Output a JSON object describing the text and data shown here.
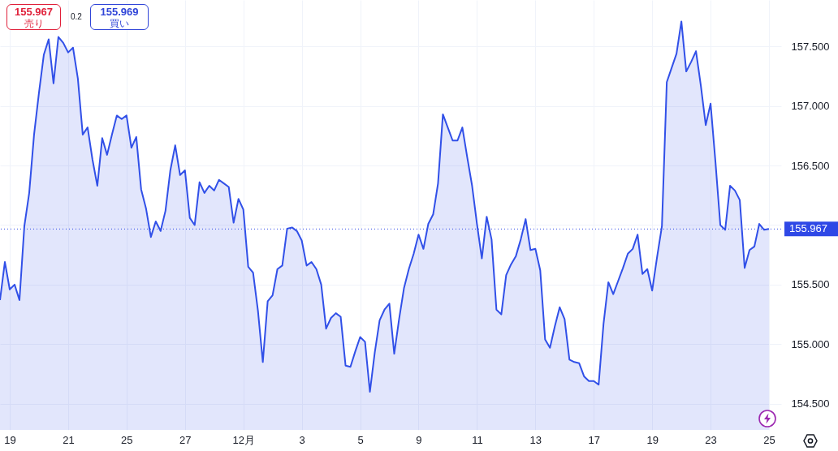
{
  "chart_data": {
    "type": "area",
    "annotations": [
      "155.967",
      "売り",
      "0.2",
      "155.969",
      "買い"
    ],
    "categories": [
      null,
      null,
      "19",
      null,
      null,
      null,
      null,
      null,
      null,
      null,
      null,
      null,
      null,
      null,
      "21",
      null,
      null,
      null,
      null,
      null,
      null,
      null,
      null,
      null,
      null,
      null,
      "25",
      null,
      null,
      null,
      null,
      null,
      null,
      null,
      null,
      null,
      null,
      null,
      "27",
      null,
      null,
      null,
      null,
      null,
      null,
      null,
      null,
      null,
      null,
      null,
      "12月",
      null,
      null,
      null,
      null,
      null,
      null,
      null,
      null,
      null,
      null,
      null,
      "3",
      null,
      null,
      null,
      null,
      null,
      null,
      null,
      null,
      null,
      null,
      null,
      "5",
      null,
      null,
      null,
      null,
      null,
      null,
      null,
      null,
      null,
      null,
      null,
      "9",
      null,
      null,
      null,
      null,
      null,
      null,
      null,
      null,
      null,
      null,
      null,
      "11",
      null,
      null,
      null,
      null,
      null,
      null,
      null,
      null,
      null,
      null,
      null,
      "13",
      null,
      null,
      null,
      null,
      null,
      null,
      null,
      null,
      null,
      null,
      null,
      "17",
      null,
      null,
      null,
      null,
      null,
      null,
      null,
      null,
      null,
      null,
      null,
      "19",
      null,
      null,
      null,
      null,
      null,
      null,
      null,
      null,
      null,
      null,
      null,
      "23",
      null,
      null,
      null,
      null,
      null,
      null,
      null,
      null,
      null,
      null,
      null,
      "25"
    ],
    "series": [
      {
        "color": "#3150e8",
        "values": [
          155.37,
          155.69,
          155.46,
          155.5,
          155.37,
          155.99,
          156.27,
          156.76,
          157.11,
          157.43,
          157.56,
          157.19,
          157.58,
          157.53,
          157.45,
          157.49,
          157.23,
          156.76,
          156.82,
          156.55,
          156.33,
          156.73,
          156.59,
          156.76,
          156.92,
          156.89,
          156.92,
          156.65,
          156.74,
          156.3,
          156.14,
          155.9,
          156.03,
          155.95,
          156.12,
          156.46,
          156.67,
          156.42,
          156.46,
          156.06,
          156.0,
          156.36,
          156.27,
          156.33,
          156.29,
          156.38,
          156.35,
          156.32,
          156.02,
          156.22,
          156.13,
          155.65,
          155.6,
          155.28,
          154.85,
          155.36,
          155.41,
          155.63,
          155.66,
          155.97,
          155.98,
          155.95,
          155.87,
          155.66,
          155.69,
          155.63,
          155.5,
          155.13,
          155.22,
          155.26,
          155.23,
          154.82,
          154.81,
          154.94,
          155.06,
          155.02,
          154.6,
          154.93,
          155.2,
          155.29,
          155.34,
          154.92,
          155.21,
          155.47,
          155.63,
          155.76,
          155.92,
          155.8,
          156.01,
          156.09,
          156.35,
          156.93,
          156.82,
          156.71,
          156.71,
          156.82,
          156.57,
          156.33,
          156.01,
          155.72,
          156.07,
          155.88,
          155.29,
          155.25,
          155.58,
          155.67,
          155.74,
          155.88,
          156.05,
          155.79,
          155.8,
          155.62,
          155.04,
          154.97,
          155.15,
          155.31,
          155.21,
          154.87,
          154.85,
          154.84,
          154.73,
          154.69,
          154.69,
          154.66,
          155.17,
          155.52,
          155.42,
          155.53,
          155.64,
          155.76,
          155.8,
          155.92,
          155.59,
          155.63,
          155.45,
          155.73,
          155.99,
          157.2,
          157.32,
          157.44,
          157.71,
          157.29,
          157.37,
          157.46,
          157.17,
          156.84,
          157.02,
          156.53,
          156.0,
          155.96,
          156.33,
          156.29,
          156.21,
          155.64,
          155.79,
          155.82,
          156.01,
          155.96,
          155.967
        ]
      }
    ],
    "ylim": [
      154.28,
      157.89
    ],
    "yticks": [
      {
        "value": 154.5,
        "label": "154.500"
      },
      {
        "value": 155,
        "label": "155.000"
      },
      {
        "value": 155.5,
        "label": "155.500"
      },
      {
        "value": 156,
        "label": null
      },
      {
        "value": 156.5,
        "label": "156.500"
      },
      {
        "value": 157,
        "label": "157.000"
      },
      {
        "value": 157.5,
        "label": "157.500"
      }
    ],
    "grid": true,
    "ref_lines": [
      {
        "axis": "y",
        "value": 155.967,
        "label": "155.967",
        "color": "#2f48e6",
        "line_style": "dotted"
      }
    ]
  }
}
